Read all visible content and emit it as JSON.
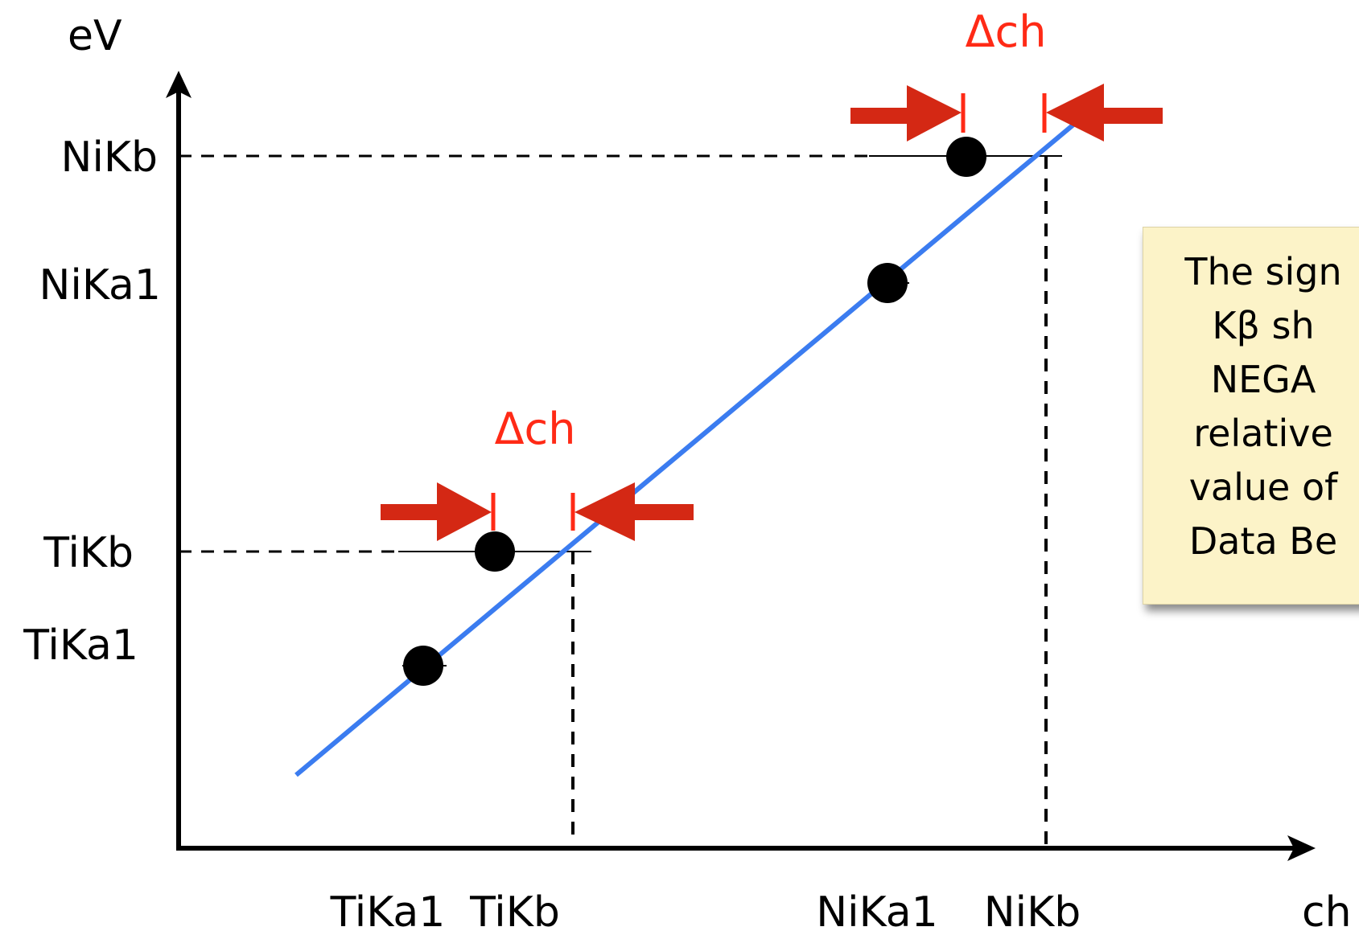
{
  "axes": {
    "y_label": "eV",
    "x_label": "ch",
    "y_ticks": [
      "NiKb",
      "NiKa1",
      "TiKb",
      "TiKa1"
    ],
    "x_ticks": [
      "TiKa1",
      "TiKb",
      "NiKa1",
      "NiKb"
    ]
  },
  "annotations": {
    "delta_top": "Δch",
    "delta_bottom": "Δch"
  },
  "note": {
    "lines": [
      "The sign",
      "Kβ sh",
      "NEGA",
      "relative",
      "value of",
      "Data Be"
    ]
  },
  "colors": {
    "fit_line": "#3b7cf0",
    "arrows": "#d42814",
    "delta_text": "#ff2a16",
    "note_bg": "#fcf3c8"
  }
}
